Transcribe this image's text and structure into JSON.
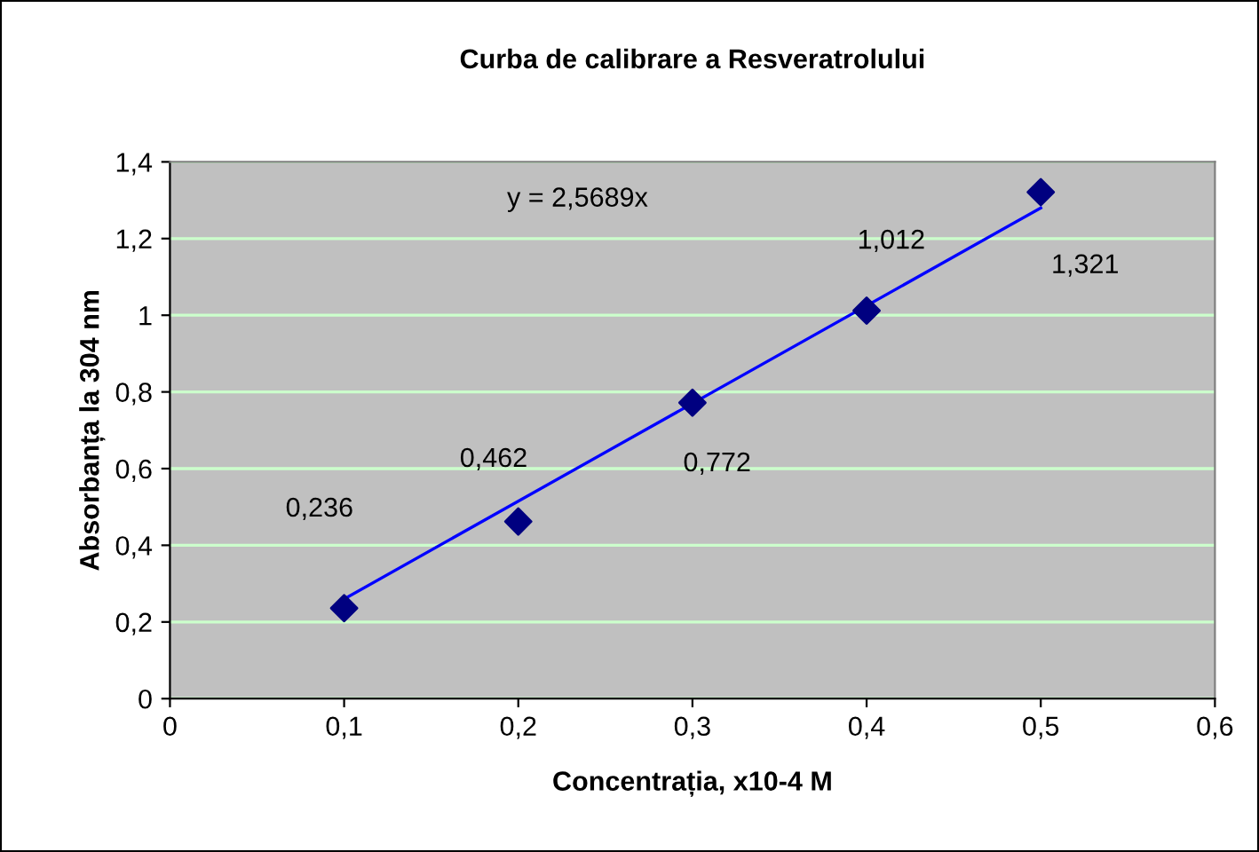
{
  "chart_data": {
    "type": "scatter",
    "title": "Curba de calibrare a Resveratrolului",
    "xlabel": "Concentrația, x10-4 M",
    "ylabel": "Absorbanța la 304 nm",
    "annotations": [
      "y = 2,5689x"
    ],
    "xlim": [
      0,
      0.6
    ],
    "xticks": [
      0,
      {
        "value": 0.1,
        "label": "0,1"
      },
      {
        "value": 0.2,
        "label": "0,2"
      },
      {
        "value": 0.3,
        "label": "0,3"
      },
      {
        "value": 0.4,
        "label": "0,4"
      },
      {
        "value": 0.5,
        "label": "0,5"
      },
      {
        "value": 0.6,
        "label": "0,6"
      }
    ],
    "ylim": [
      0,
      1.4
    ],
    "yticks": [
      0,
      {
        "value": 0.2,
        "label": "0,2"
      },
      {
        "value": 0.4,
        "label": "0,4"
      },
      {
        "value": 0.6,
        "label": "0,6"
      },
      {
        "value": 0.8,
        "label": "0,8"
      },
      1,
      {
        "value": 1.2,
        "label": "1,2"
      },
      {
        "value": 1.4,
        "label": "1,4"
      }
    ],
    "grid": "y",
    "series": [
      {
        "marker": "diamond",
        "color": "#000080",
        "x": [
          0.1,
          0.2,
          0.3,
          0.4,
          0.5
        ],
        "values": [
          0.236,
          0.462,
          0.772,
          1.012,
          1.321
        ],
        "value_labels": [
          "0,236",
          "0,462",
          "0,772",
          "1,012",
          "1,321"
        ]
      },
      {
        "type": "line",
        "marker": "none",
        "color": "#0000ff",
        "x": [
          0.1,
          0.5
        ],
        "values": [
          0.26,
          1.28
        ]
      }
    ]
  }
}
